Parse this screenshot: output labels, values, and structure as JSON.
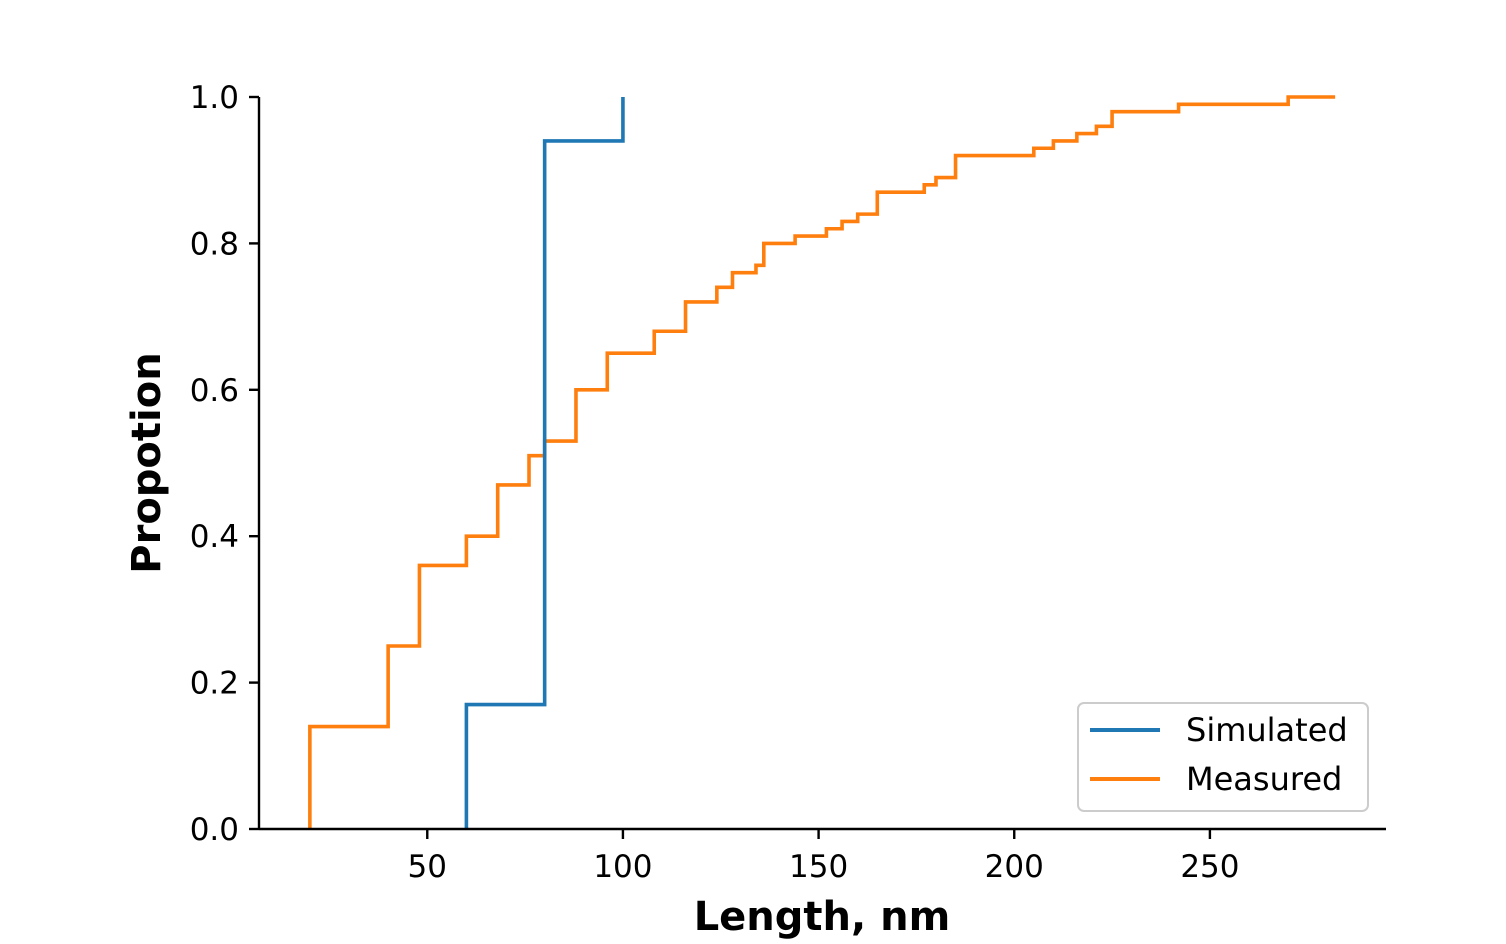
{
  "chart_data": {
    "type": "line",
    "drawstyle": "step",
    "xlabel": "Length, nm",
    "ylabel": "Propotion",
    "xlim": [
      7,
      295
    ],
    "ylim": [
      0,
      1.0
    ],
    "xticks": [
      50,
      100,
      150,
      200,
      250
    ],
    "yticks": [
      0.0,
      0.2,
      0.4,
      0.6,
      0.8,
      1.0
    ],
    "ytick_labels": [
      "0.0",
      "0.2",
      "0.4",
      "0.6",
      "0.8",
      "1.0"
    ],
    "grid": false,
    "legend_position": "lower-right",
    "series": [
      {
        "name": "Simulated",
        "color": "#1f77b4",
        "x": [
          60,
          80,
          100
        ],
        "y": [
          0.17,
          0.94,
          1.0
        ]
      },
      {
        "name": "Measured",
        "color": "#ff7f0e",
        "x": [
          20,
          40,
          48,
          60,
          68,
          76,
          80,
          88,
          96,
          108,
          116,
          124,
          128,
          134,
          136,
          144,
          152,
          156,
          160,
          165,
          177,
          180,
          185,
          205,
          210,
          216,
          221,
          225,
          242,
          270,
          282
        ],
        "y": [
          0.14,
          0.25,
          0.36,
          0.4,
          0.47,
          0.51,
          0.53,
          0.6,
          0.65,
          0.68,
          0.72,
          0.74,
          0.76,
          0.77,
          0.8,
          0.81,
          0.82,
          0.83,
          0.84,
          0.87,
          0.88,
          0.89,
          0.92,
          0.93,
          0.94,
          0.95,
          0.96,
          0.98,
          0.99,
          1.0,
          1.0
        ]
      }
    ]
  }
}
